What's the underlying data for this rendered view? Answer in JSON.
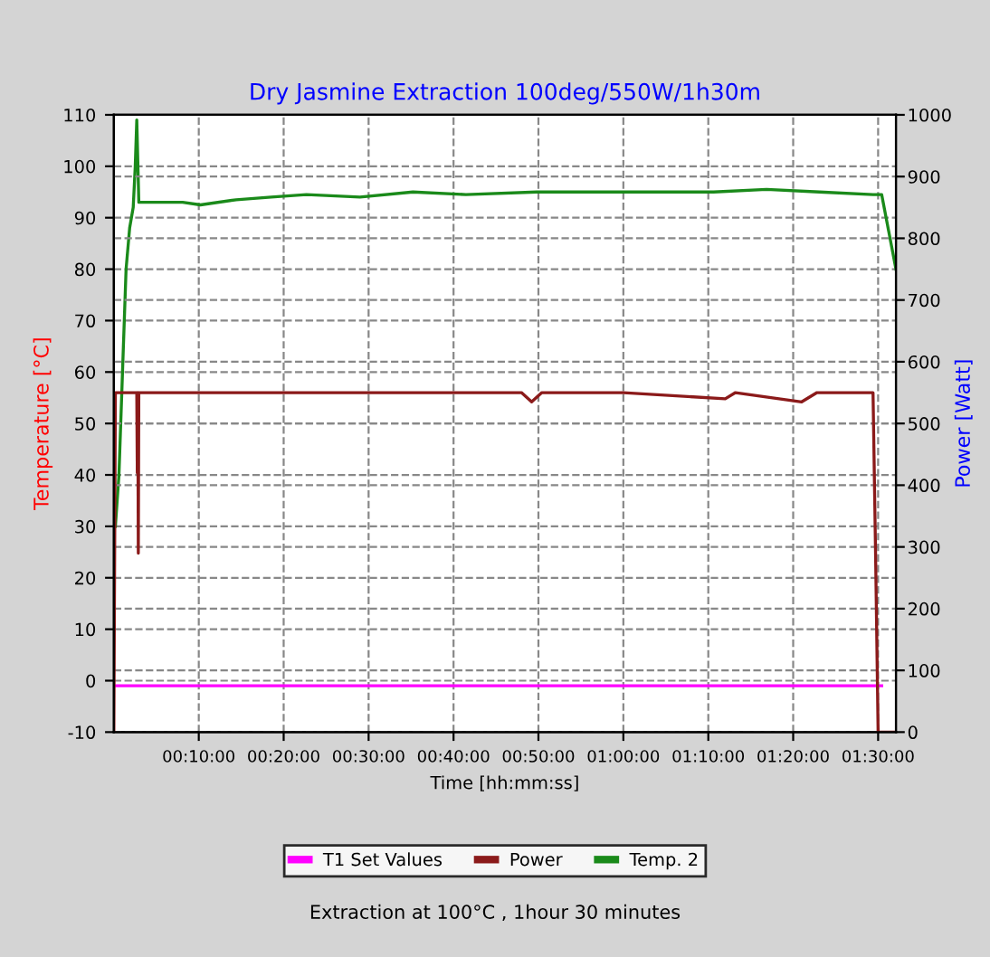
{
  "chart_data": {
    "type": "line",
    "title": "Dry Jasmine Extraction 100deg/550W/1h30m",
    "xlabel": "Time [hh:mm:ss]",
    "ylabel": "Temperature [°C]",
    "y2label": "Power [Watt]",
    "xlim": [
      0,
      1.535
    ],
    "xticks": [
      {
        "value": 0.1667,
        "label": "00:10:00"
      },
      {
        "value": 0.3333,
        "label": "00:20:00"
      },
      {
        "value": 0.5,
        "label": "00:30:00"
      },
      {
        "value": 0.6667,
        "label": "00:40:00"
      },
      {
        "value": 0.8333,
        "label": "00:50:00"
      },
      {
        "value": 1.0,
        "label": "01:00:00"
      },
      {
        "value": 1.1667,
        "label": "01:10:00"
      },
      {
        "value": 1.3333,
        "label": "01:20:00"
      },
      {
        "value": 1.5,
        "label": "01:30:00"
      }
    ],
    "ylim": [
      -10,
      110
    ],
    "yticks": [
      -10,
      0,
      10,
      20,
      30,
      40,
      50,
      60,
      70,
      80,
      90,
      100,
      110
    ],
    "y2lim": [
      0,
      1000
    ],
    "y2ticks": [
      0,
      100,
      200,
      300,
      400,
      500,
      600,
      700,
      800,
      900,
      1000
    ],
    "grid": true,
    "legend": "bottom",
    "line_style": "solid",
    "series": [
      {
        "name": "T1 Set Values",
        "color": "#ff00ff",
        "x": [
          0.003,
          1.507
        ],
        "values": [
          -1,
          -1
        ]
      },
      {
        "name": "Power",
        "color": "#8b1a1a",
        "axis": "y2",
        "x": [
          0.0,
          0.003,
          0.045,
          0.046,
          0.047,
          0.048,
          0.049,
          0.8,
          0.82,
          0.84,
          1.0,
          1.2,
          1.22,
          1.35,
          1.38,
          1.49,
          1.495,
          1.5,
          1.535
        ],
        "values": [
          0,
          550,
          550,
          420,
          550,
          290,
          550,
          550,
          535,
          550,
          550,
          540,
          550,
          535,
          550,
          550,
          290,
          0,
          0
        ]
      },
      {
        "name": "Temp. 2",
        "color": "#1a8a1a",
        "x": [
          0.003,
          0.01,
          0.017,
          0.024,
          0.031,
          0.038,
          0.042,
          0.045,
          0.049,
          0.066,
          0.135,
          0.17,
          0.24,
          0.309,
          0.378,
          0.483,
          0.587,
          0.691,
          0.83,
          1.003,
          1.177,
          1.281,
          1.385,
          1.49,
          1.507,
          1.535
        ],
        "values": [
          30,
          40,
          60,
          80,
          88,
          92,
          100,
          109,
          93,
          93,
          93,
          92.5,
          93.5,
          94,
          94.5,
          94,
          95,
          94.5,
          95,
          95,
          95,
          95.5,
          95,
          94.5,
          94.5,
          80
        ]
      }
    ],
    "annotations": [
      "Extraction at 100°C , 1hour 30 minutes"
    ]
  }
}
